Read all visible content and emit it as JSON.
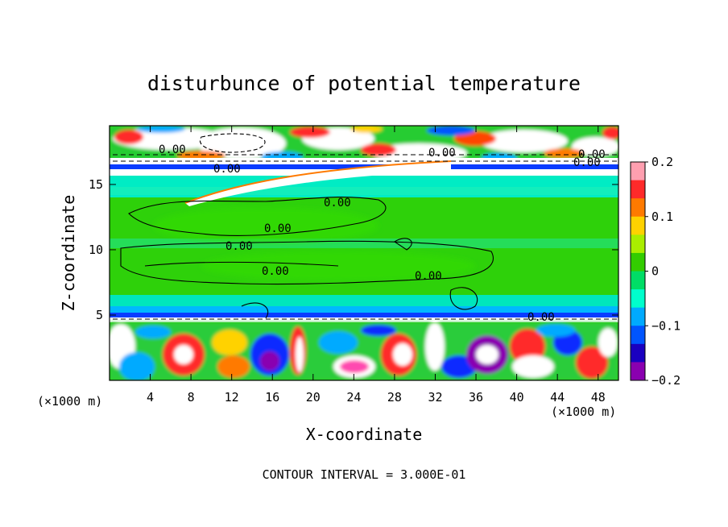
{
  "chart_data": {
    "type": "heatmap",
    "title": "disturbunce of potential temperature",
    "xlabel": "X-coordinate",
    "ylabel": "Z-coordinate",
    "x_unit": "(×1000 m)",
    "y_unit": "(×1000 m)",
    "xlim": [
      0,
      50
    ],
    "ylim": [
      0,
      19.5
    ],
    "x_ticks": [
      4,
      8,
      12,
      16,
      20,
      24,
      28,
      32,
      36,
      40,
      44,
      48
    ],
    "y_ticks": [
      5,
      10,
      15
    ],
    "colorbar": {
      "range": [
        -0.2,
        0.2
      ],
      "ticks": [
        "0.2",
        "0.1",
        "0",
        "−0.1",
        "−0.2"
      ],
      "colors": [
        "#ff9fb0",
        "#ff2a2a",
        "#ff7a00",
        "#ffd200",
        "#aaee00",
        "#33cc00",
        "#00dd66",
        "#00ffcc",
        "#00aaff",
        "#0055ff",
        "#1a00c0",
        "#8a00b0"
      ]
    },
    "contour_labels": [
      "0.00",
      "0.00",
      "0.00",
      "0.00",
      "0.00",
      "0.00",
      "0.00",
      "0.00",
      "0.00",
      "0.00",
      "0.00"
    ],
    "contour_interval_label": "CONTOUR INTERVAL =  3.000E-01",
    "grid": false
  }
}
